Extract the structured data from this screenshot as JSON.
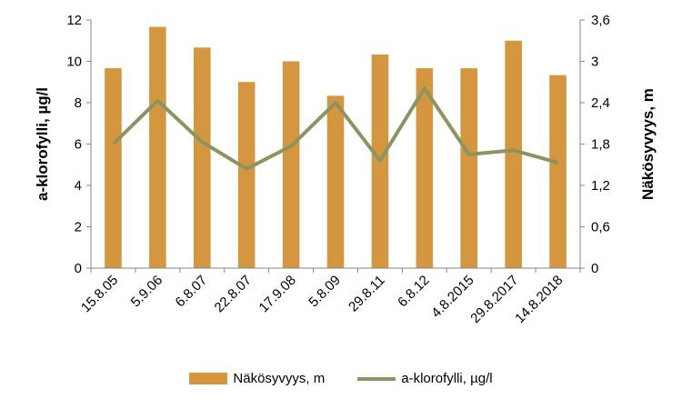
{
  "chart_data": {
    "type": "bar",
    "categories": [
      "15.8.05",
      "5.9.06",
      "6.8.07",
      "22.8.07",
      "17.9.08",
      "5.8.09",
      "29.8.11",
      "6.8.12",
      "4.8.2015",
      "29.8.2017",
      "14.8.2018"
    ],
    "series": [
      {
        "name": "Näkösyvyys, m",
        "type": "bar",
        "axis": "right",
        "color": "#D4973F",
        "values": [
          2.9,
          3.5,
          3.2,
          2.7,
          3.0,
          2.5,
          3.1,
          2.9,
          2.9,
          3.3,
          2.8
        ]
      },
      {
        "name": "a-klorofylli,  µg/l",
        "type": "line",
        "axis": "left",
        "color": "#8C9460",
        "values": [
          6.0,
          8.1,
          6.1,
          4.8,
          5.9,
          8.0,
          5.2,
          8.7,
          5.5,
          5.7,
          5.1
        ]
      }
    ],
    "ylabel_left": "a-klorofylli, µg/l",
    "ylabel_right": "Näkösyvyys, m",
    "ylim_left": [
      0,
      12
    ],
    "ylim_right": [
      0,
      3.6
    ],
    "yticks_left": [
      "0",
      "2",
      "4",
      "6",
      "8",
      "10",
      "12"
    ],
    "yticks_right": [
      "0",
      "0,6",
      "1,2",
      "1,8",
      "2,4",
      "3",
      "3,6"
    ],
    "grid": false,
    "legend_position": "bottom"
  }
}
